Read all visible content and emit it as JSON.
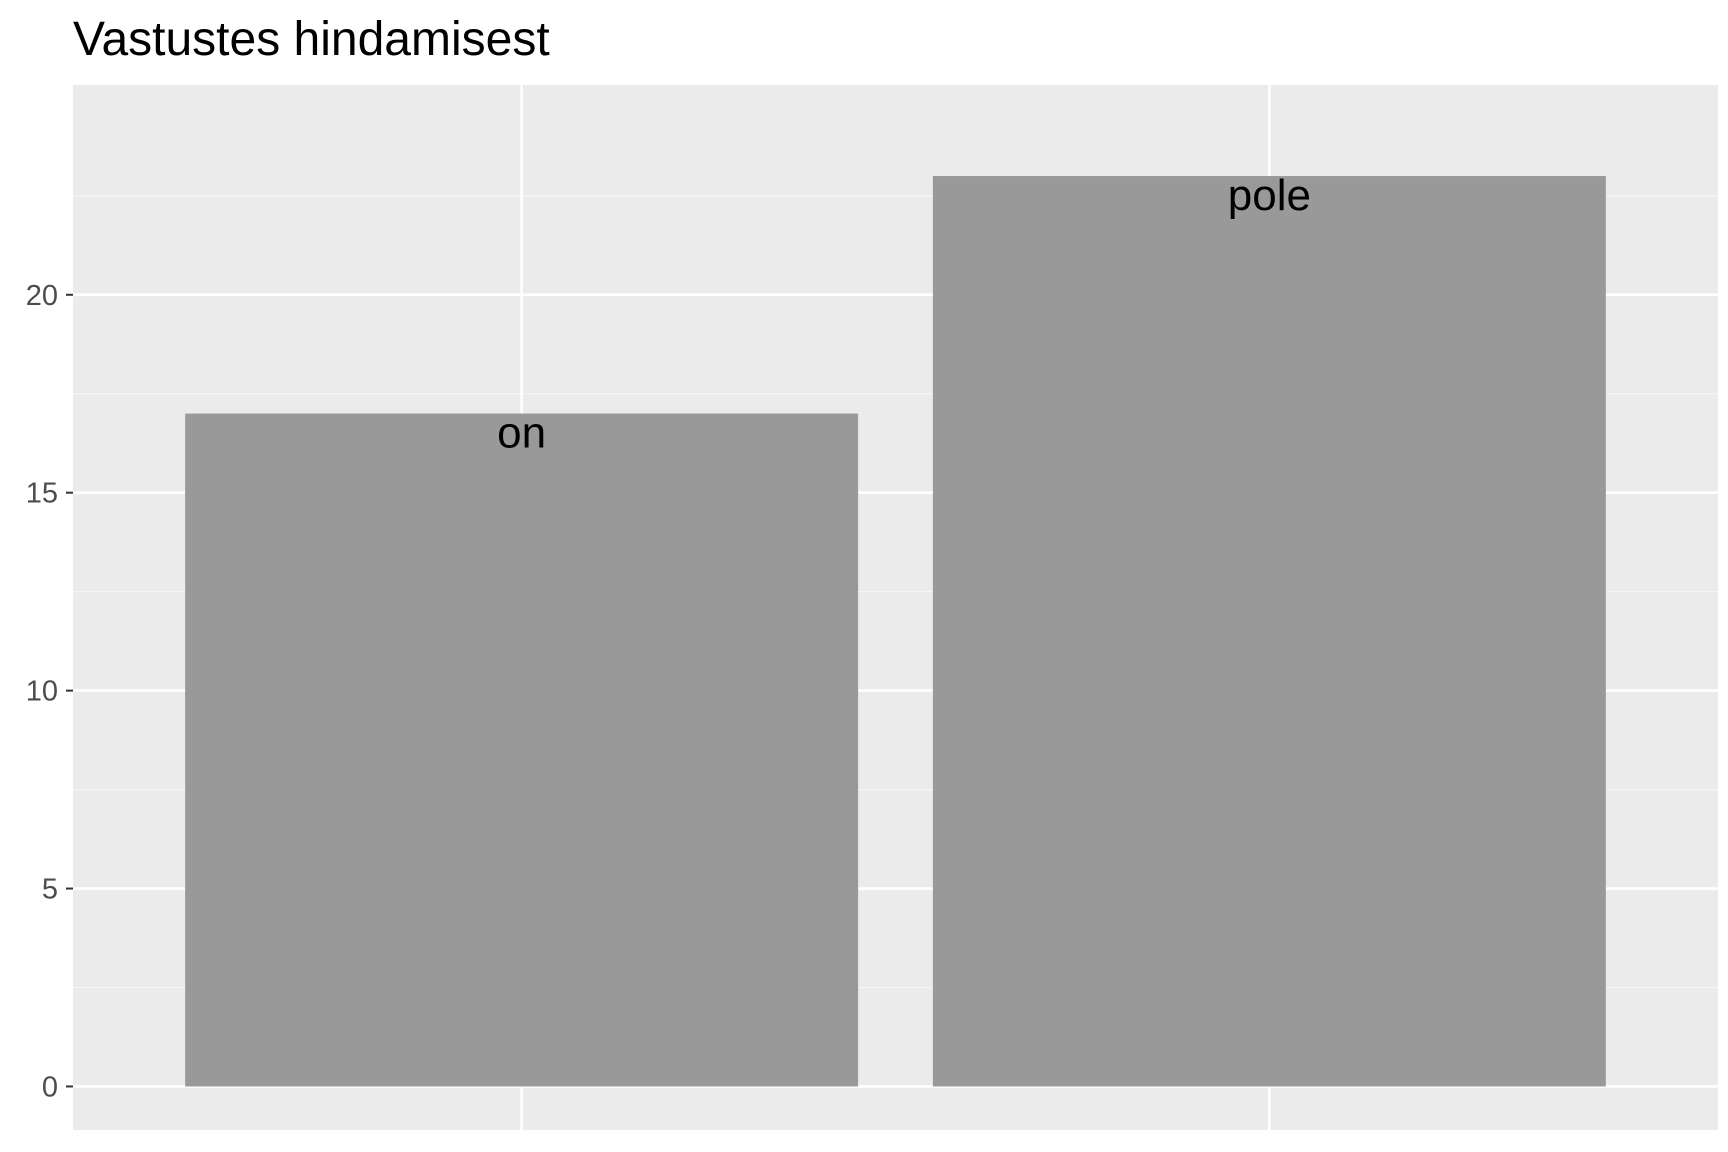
{
  "chart_data": {
    "type": "bar",
    "title": "Vastustes hindamisest",
    "xlabel": "",
    "ylabel": "",
    "categories": [
      "on",
      "pole"
    ],
    "values": [
      17,
      23
    ],
    "ylim": [
      -1.1,
      25.3
    ],
    "y_ticks": [
      0,
      5,
      10,
      15,
      20
    ],
    "y_tick_labels": [
      "0",
      "5",
      "10",
      "15",
      "20"
    ],
    "x_tick_labels_shown": false,
    "bar_labels": [
      "on",
      "pole"
    ],
    "grid": true,
    "legend": "none",
    "colors": {
      "panel_background": "#ebebeb",
      "grid_major": "#ffffff",
      "grid_minor": "#f5f5f5",
      "bar_fill": "#999999",
      "tick_label": "#4d4d4d",
      "title": "#000000"
    }
  }
}
